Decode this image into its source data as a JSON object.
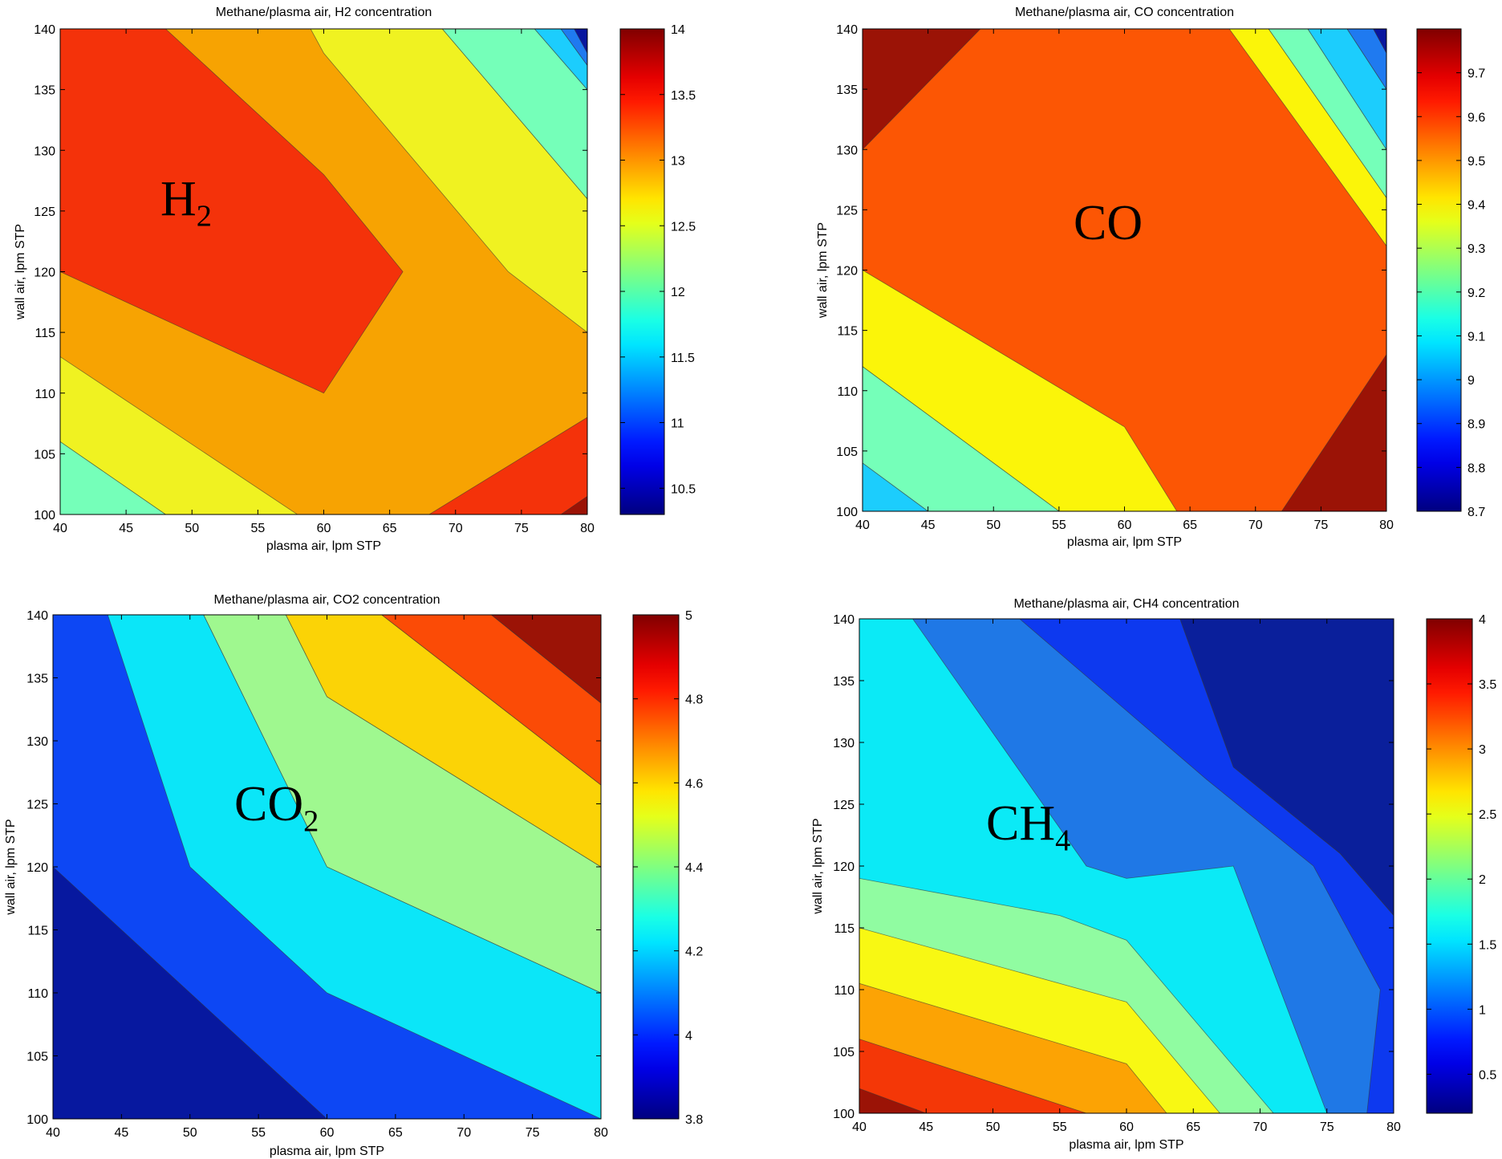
{
  "chart_data": [
    {
      "type": "contour",
      "title": "Methane/plasma air, H2 concentration",
      "xlabel": "plasma air, lpm STP",
      "ylabel": "wall air, lpm STP",
      "xlim": [
        40,
        80
      ],
      "ylim": [
        100,
        140
      ],
      "xticks": [
        "40",
        "45",
        "50",
        "55",
        "60",
        "65",
        "70",
        "75",
        "80"
      ],
      "yticks": [
        "100",
        "105",
        "110",
        "115",
        "120",
        "125",
        "130",
        "135",
        "140"
      ],
      "colorbar": {
        "range": [
          10.3,
          14
        ],
        "ticks": [
          "10.5",
          "11",
          "11.5",
          "12",
          "12.5",
          "13",
          "13.5",
          "14"
        ]
      },
      "annotation": {
        "main": "H",
        "sub": "2"
      },
      "background": "#f7a302",
      "regions": [
        {
          "level": 13.75,
          "color": "#f4320a",
          "points": [
            [
              40,
              140
            ],
            [
              48,
              140
            ],
            [
              60,
              128
            ],
            [
              66,
              120
            ],
            [
              60,
              110
            ],
            [
              40,
              120
            ]
          ]
        },
        {
          "level": 12.75,
          "color": "#f0f221",
          "points": [
            [
              40,
              113
            ],
            [
              58,
              100
            ],
            [
              48,
              100
            ],
            [
              40,
              106
            ]
          ]
        },
        {
          "level": 12.25,
          "color": "#75ffb9",
          "points": [
            [
              40,
              106
            ],
            [
              48,
              100
            ],
            [
              40,
              100
            ]
          ]
        },
        {
          "level": 12.75,
          "color": "#f0f221",
          "points": [
            [
              59,
              140
            ],
            [
              60,
              138
            ],
            [
              74,
              120
            ],
            [
              80,
              115
            ],
            [
              80,
              126
            ],
            [
              69,
              140
            ]
          ]
        },
        {
          "level": 12.25,
          "color": "#75ffb9",
          "points": [
            [
              69,
              140
            ],
            [
              80,
              126
            ],
            [
              80,
              135
            ],
            [
              76,
              140
            ]
          ]
        },
        {
          "level": 11.75,
          "color": "#1ccdfd",
          "points": [
            [
              76,
              140
            ],
            [
              80,
              135
            ],
            [
              80,
              140
            ]
          ]
        },
        {
          "level": 11.75,
          "color": "#1ccdfd",
          "points": [
            [
              78,
              140
            ],
            [
              80,
              137
            ],
            [
              80,
              140
            ]
          ]
        },
        {
          "level": 11.25,
          "color": "#1f7af0",
          "points": [
            [
              80,
              137
            ],
            [
              80,
              140
            ],
            [
              78,
              140
            ]
          ]
        },
        {
          "level": 10.75,
          "color": "#08169f",
          "points": [
            [
              80,
              138
            ],
            [
              80,
              140
            ],
            [
              79,
              140
            ]
          ]
        },
        {
          "level": 13.75,
          "color": "#f4320a",
          "points": [
            [
              68,
              100
            ],
            [
              80,
              108
            ],
            [
              80,
              100
            ]
          ]
        },
        {
          "level": 14.0,
          "color": "#9b1306",
          "points": [
            [
              78,
              100
            ],
            [
              80,
              101.5
            ],
            [
              80,
              100
            ]
          ]
        }
      ]
    },
    {
      "type": "contour",
      "title": "Methane/plasma air, CO concentration",
      "xlabel": "plasma air, lpm STP",
      "ylabel": "wall air, lpm STP",
      "xlim": [
        40,
        80
      ],
      "ylim": [
        100,
        140
      ],
      "xticks": [
        "40",
        "45",
        "50",
        "55",
        "60",
        "65",
        "70",
        "75",
        "80"
      ],
      "yticks": [
        "100",
        "105",
        "110",
        "115",
        "120",
        "125",
        "130",
        "135",
        "140"
      ],
      "colorbar": {
        "range": [
          8.7,
          9.8
        ],
        "ticks": [
          "8.7",
          "8.8",
          "8.9",
          "9",
          "9.1",
          "9.2",
          "9.3",
          "9.4",
          "9.5",
          "9.6",
          "9.7"
        ]
      },
      "annotation": {
        "main": "CO",
        "sub": ""
      },
      "background": "#fc5604",
      "regions": [
        {
          "level": 9.75,
          "color": "#9b1306",
          "points": [
            [
              40,
              140
            ],
            [
              49,
              140
            ],
            [
              40,
              130
            ]
          ]
        },
        {
          "level": 9.75,
          "color": "#9b1306",
          "points": [
            [
              72,
              100
            ],
            [
              80,
              100
            ],
            [
              80,
              113
            ]
          ]
        },
        {
          "level": 9.4,
          "color": "#fbf509",
          "points": [
            [
              40,
              120
            ],
            [
              60,
              107
            ],
            [
              64,
              100
            ],
            [
              55,
              100
            ],
            [
              40,
              112
            ]
          ]
        },
        {
          "level": 9.2,
          "color": "#75ffb9",
          "points": [
            [
              40,
              112
            ],
            [
              55,
              100
            ],
            [
              45,
              100
            ],
            [
              40,
              104
            ]
          ]
        },
        {
          "level": 9.1,
          "color": "#1ccdfd",
          "points": [
            [
              40,
              104
            ],
            [
              45,
              100
            ],
            [
              40,
              100
            ]
          ]
        },
        {
          "level": 9.4,
          "color": "#fbf509",
          "points": [
            [
              68,
              140
            ],
            [
              80,
              122
            ],
            [
              80,
              126
            ],
            [
              71,
              140
            ]
          ]
        },
        {
          "level": 9.2,
          "color": "#75ffb9",
          "points": [
            [
              71,
              140
            ],
            [
              80,
              126
            ],
            [
              80,
              130
            ],
            [
              74,
              140
            ]
          ]
        },
        {
          "level": 9.0,
          "color": "#1ccdfd",
          "points": [
            [
              74,
              140
            ],
            [
              80,
              130
            ],
            [
              80,
              135
            ],
            [
              77,
              140
            ]
          ]
        },
        {
          "level": 8.8,
          "color": "#1f7af0",
          "points": [
            [
              77,
              140
            ],
            [
              80,
              135
            ],
            [
              80,
              138
            ],
            [
              79,
              140
            ]
          ]
        },
        {
          "level": 8.7,
          "color": "#08169f",
          "points": [
            [
              79,
              140
            ],
            [
              80,
              138
            ],
            [
              80,
              140
            ]
          ]
        }
      ]
    },
    {
      "type": "contour",
      "title": "Methane/plasma air, CO2 concentration",
      "xlabel": "plasma air, lpm STP",
      "ylabel": "wall air, lpm STP",
      "xlim": [
        40,
        80
      ],
      "ylim": [
        100,
        140
      ],
      "xticks": [
        "40",
        "45",
        "50",
        "55",
        "60",
        "65",
        "70",
        "75",
        "80"
      ],
      "yticks": [
        "100",
        "105",
        "110",
        "115",
        "120",
        "125",
        "130",
        "135",
        "140"
      ],
      "colorbar": {
        "range": [
          3.8,
          5.0
        ],
        "ticks": [
          "3.8",
          "4",
          "4.2",
          "4.4",
          "4.6",
          "4.8",
          "5"
        ]
      },
      "annotation": {
        "main": "CO",
        "sub": "2"
      },
      "background": "#0d47f4",
      "regions": [
        {
          "level": 3.9,
          "color": "#07189f",
          "points": [
            [
              40,
              120
            ],
            [
              60,
              100
            ],
            [
              40,
              100
            ]
          ]
        },
        {
          "level": 4.3,
          "color": "#0be6f8",
          "points": [
            [
              44,
              140
            ],
            [
              51,
              140
            ],
            [
              60,
              120
            ],
            [
              80,
              110
            ],
            [
              80,
              100
            ],
            [
              60,
              110
            ],
            [
              50,
              120
            ]
          ]
        },
        {
          "level": 4.5,
          "color": "#9ff88f",
          "points": [
            [
              51,
              140
            ],
            [
              57,
              140
            ],
            [
              60,
              133.5
            ],
            [
              80,
              120
            ],
            [
              80,
              110
            ],
            [
              60,
              120
            ]
          ]
        },
        {
          "level": 4.7,
          "color": "#fbd306",
          "points": [
            [
              57,
              140
            ],
            [
              64,
              140
            ],
            [
              80,
              126.5
            ],
            [
              80,
              120
            ],
            [
              60,
              133.5
            ]
          ]
        },
        {
          "level": 4.85,
          "color": "#fb4b06",
          "points": [
            [
              64,
              140
            ],
            [
              72,
              140
            ],
            [
              80,
              133
            ],
            [
              80,
              126.5
            ]
          ]
        },
        {
          "level": 5.0,
          "color": "#9b1306",
          "points": [
            [
              72,
              140
            ],
            [
              80,
              140
            ],
            [
              80,
              133
            ]
          ]
        }
      ]
    },
    {
      "type": "contour",
      "title": "Methane/plasma air, CH4 concentration",
      "xlabel": "plasma air, lpm STP",
      "ylabel": "wall air, lpm STP",
      "xlim": [
        40,
        80
      ],
      "ylim": [
        100,
        140
      ],
      "xticks": [
        "40",
        "45",
        "50",
        "55",
        "60",
        "65",
        "70",
        "75",
        "80"
      ],
      "yticks": [
        "100",
        "105",
        "110",
        "115",
        "120",
        "125",
        "130",
        "135",
        "140"
      ],
      "colorbar": {
        "range": [
          0.2,
          4.0
        ],
        "ticks": [
          "0.5",
          "1",
          "1.5",
          "2",
          "2.5",
          "3",
          "3.5",
          "4"
        ]
      },
      "annotation": {
        "main": "CH",
        "sub": "4"
      },
      "background": "#1f78e6",
      "regions": [
        {
          "level": 0.3,
          "color": "#0a1f9b",
          "points": [
            [
              64,
              140
            ],
            [
              80,
              140
            ],
            [
              80,
              116
            ],
            [
              76,
              121
            ],
            [
              68,
              128
            ]
          ]
        },
        {
          "level": 0.7,
          "color": "#0d39ef",
          "points": [
            [
              52,
              140
            ],
            [
              64,
              140
            ],
            [
              68,
              128
            ],
            [
              76,
              121
            ],
            [
              80,
              116
            ],
            [
              80,
              100
            ],
            [
              78,
              100
            ],
            [
              79,
              110
            ],
            [
              74,
              120
            ],
            [
              66,
              127
            ]
          ]
        },
        {
          "level": 1.6,
          "color": "#0beaf6",
          "points": [
            [
              40,
              140
            ],
            [
              44,
              140
            ],
            [
              57,
              120
            ],
            [
              60,
              119
            ],
            [
              68,
              120
            ],
            [
              75,
              100
            ],
            [
              40,
              100
            ]
          ]
        },
        {
          "level": 2.1,
          "color": "#90fca1",
          "points": [
            [
              40,
              119
            ],
            [
              55,
              116
            ],
            [
              60,
              114
            ],
            [
              71,
              100
            ],
            [
              40,
              100
            ]
          ]
        },
        {
          "level": 2.6,
          "color": "#f8f813",
          "points": [
            [
              40,
              115
            ],
            [
              60,
              109
            ],
            [
              67,
              100
            ],
            [
              40,
              100
            ]
          ]
        },
        {
          "level": 3.0,
          "color": "#fca304",
          "points": [
            [
              40,
              110.5
            ],
            [
              60,
              104
            ],
            [
              63,
              100
            ],
            [
              40,
              100
            ]
          ]
        },
        {
          "level": 3.5,
          "color": "#f43707",
          "points": [
            [
              40,
              106
            ],
            [
              57,
              100
            ],
            [
              40,
              100
            ]
          ]
        },
        {
          "level": 4.0,
          "color": "#9b1306",
          "points": [
            [
              40,
              102
            ],
            [
              45,
              100
            ],
            [
              40,
              100
            ]
          ]
        }
      ]
    }
  ]
}
